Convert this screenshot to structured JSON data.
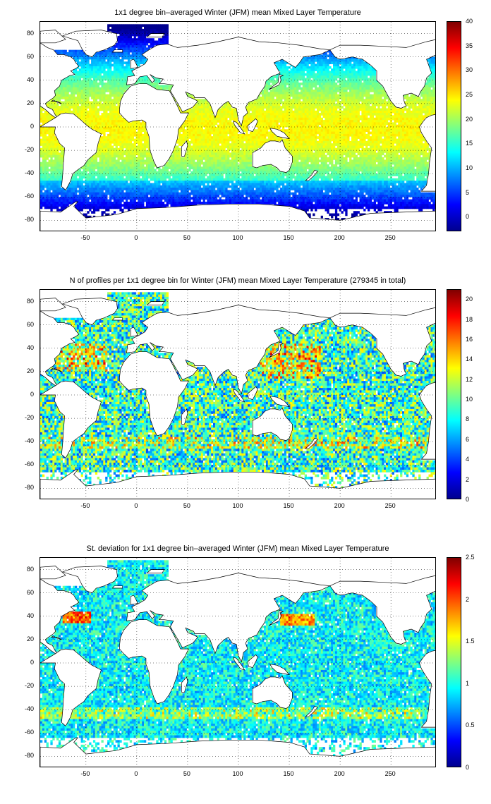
{
  "colormap": [
    "#00008f",
    "#0000ff",
    "#0080ff",
    "#00ffff",
    "#80ff80",
    "#ffff00",
    "#ff8000",
    "#ff0000",
    "#800000"
  ],
  "land_color": "#ffffff",
  "panels": [
    {
      "title": "1x1 degree bin–averaged Winter (JFM) mean Mixed Layer Temperature",
      "field": "temperature",
      "xlim": [
        -95,
        295
      ],
      "ylim": [
        -90,
        90
      ],
      "xticks": [
        "-50",
        "0",
        "50",
        "100",
        "150",
        "200",
        "250"
      ],
      "yticks": [
        "80",
        "60",
        "40",
        "20",
        "0",
        "-20",
        "-40",
        "-60",
        "-80"
      ],
      "colorbar": {
        "min": -3,
        "max": 40,
        "ticks": [
          "40",
          "35",
          "30",
          "25",
          "20",
          "15",
          "10",
          "5",
          "0"
        ]
      }
    },
    {
      "title": "N of profiles per 1x1 degree bin for Winter (JFM) mean Mixed Layer Temperature  (279345 in total)",
      "field": "count",
      "xlim": [
        -95,
        295
      ],
      "ylim": [
        -90,
        90
      ],
      "xticks": [
        "-50",
        "0",
        "50",
        "100",
        "150",
        "200",
        "250"
      ],
      "yticks": [
        "80",
        "60",
        "40",
        "20",
        "0",
        "-20",
        "-40",
        "-60",
        "-80"
      ],
      "colorbar": {
        "min": 0,
        "max": 21,
        "ticks": [
          "20",
          "18",
          "16",
          "14",
          "12",
          "10",
          "8",
          "6",
          "4",
          "2",
          "0"
        ]
      }
    },
    {
      "title": "St. deviation for 1x1 degree bin–averaged Winter (JFM) mean Mixed Layer Temperature",
      "field": "stdev",
      "xlim": [
        -95,
        295
      ],
      "ylim": [
        -90,
        90
      ],
      "xticks": [
        "-50",
        "0",
        "50",
        "100",
        "150",
        "200",
        "250"
      ],
      "yticks": [
        "80",
        "60",
        "40",
        "20",
        "0",
        "-20",
        "-40",
        "-60",
        "-80"
      ],
      "colorbar": {
        "min": 0,
        "max": 2.5,
        "ticks": [
          "2.5",
          "2",
          "1.5",
          "1",
          "0.5",
          "0"
        ]
      }
    }
  ]
}
